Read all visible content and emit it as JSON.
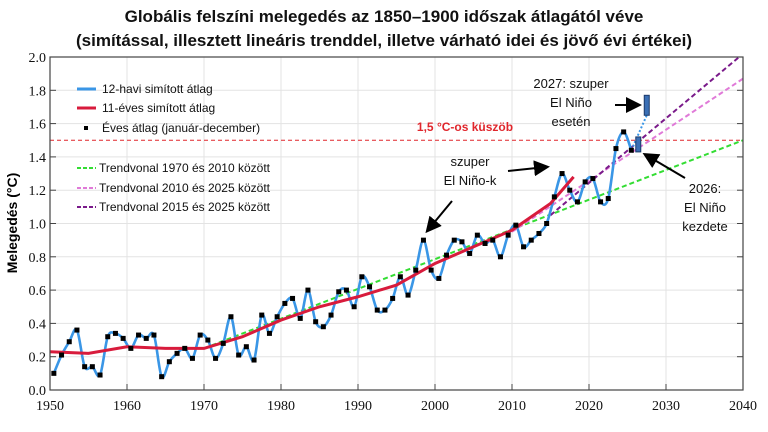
{
  "chart_data": {
    "type": "line",
    "title": "Globális felszíni melegedés az 1850–1900 időszak átlagától véve",
    "subtitle": "(simítással, illesztett lineáris trenddel, illetve várható idei és jövő évi értékei)",
    "xlabel": "",
    "ylabel": "Melegedés (°C)",
    "xlim": [
      1950,
      2040
    ],
    "ylim": [
      0,
      2.0
    ],
    "xticks": [
      "1950",
      "1960",
      "1970",
      "1980",
      "1990",
      "2000",
      "2010",
      "2020",
      "2030",
      "2040"
    ],
    "yticks": [
      "0.0",
      "0.2",
      "0.4",
      "0.6",
      "0.8",
      "1.0",
      "1.2",
      "1.4",
      "1.6",
      "1.8",
      "2.0"
    ],
    "grid": true,
    "legend_position": "top-left",
    "series": [
      {
        "name": "12-havi simított átlag",
        "color": "#3a96e6",
        "style": "solid"
      },
      {
        "name": "11-éves simított átlag",
        "color": "#d81b3c",
        "style": "solid",
        "x": [
          1950,
          1955,
          1960,
          1965,
          1970,
          1975,
          1980,
          1985,
          1990,
          1995,
          2000,
          2005,
          2010,
          2015,
          2018
        ],
        "y": [
          0.23,
          0.22,
          0.26,
          0.25,
          0.25,
          0.32,
          0.42,
          0.5,
          0.56,
          0.63,
          0.76,
          0.86,
          0.96,
          1.12,
          1.28
        ]
      },
      {
        "name": "Éves átlag (január-december)",
        "color": "#000000",
        "style": "markers",
        "x": [
          1950,
          1951,
          1952,
          1953,
          1954,
          1955,
          1956,
          1957,
          1958,
          1959,
          1960,
          1961,
          1962,
          1963,
          1964,
          1965,
          1966,
          1967,
          1968,
          1969,
          1970,
          1971,
          1972,
          1973,
          1974,
          1975,
          1976,
          1977,
          1978,
          1979,
          1980,
          1981,
          1982,
          1983,
          1984,
          1985,
          1986,
          1987,
          1988,
          1989,
          1990,
          1991,
          1992,
          1993,
          1994,
          1995,
          1996,
          1997,
          1998,
          1999,
          2000,
          2001,
          2002,
          2003,
          2004,
          2005,
          2006,
          2007,
          2008,
          2009,
          2010,
          2011,
          2012,
          2013,
          2014,
          2015,
          2016,
          2017,
          2018,
          2019,
          2020,
          2021,
          2022,
          2023,
          2024,
          2025
        ],
        "y": [
          0.1,
          0.21,
          0.29,
          0.36,
          0.14,
          0.14,
          0.09,
          0.32,
          0.34,
          0.31,
          0.25,
          0.33,
          0.31,
          0.33,
          0.08,
          0.17,
          0.22,
          0.25,
          0.19,
          0.33,
          0.3,
          0.19,
          0.28,
          0.44,
          0.21,
          0.26,
          0.18,
          0.45,
          0.34,
          0.44,
          0.52,
          0.55,
          0.43,
          0.6,
          0.41,
          0.38,
          0.45,
          0.59,
          0.6,
          0.5,
          0.68,
          0.62,
          0.48,
          0.48,
          0.55,
          0.68,
          0.57,
          0.72,
          0.9,
          0.72,
          0.67,
          0.81,
          0.9,
          0.89,
          0.82,
          0.93,
          0.88,
          0.9,
          0.8,
          0.93,
          0.99,
          0.86,
          0.9,
          0.94,
          1.0,
          1.16,
          1.3,
          1.2,
          1.13,
          1.25,
          1.27,
          1.13,
          1.15,
          1.45,
          1.55,
          1.44
        ]
      },
      {
        "name": "Trendvonal 1970 és 2010 között",
        "color": "#33dd33",
        "style": "dashed",
        "x": [
          1970,
          2040
        ],
        "y": [
          0.25,
          1.5
        ]
      },
      {
        "name": "Trendvonal 2010 és 2025 között",
        "color": "#e07ad8",
        "style": "dashed",
        "x": [
          2010,
          2040
        ],
        "y": [
          0.95,
          1.87
        ]
      },
      {
        "name": "Trendvonal 2015 és 2025 között",
        "color": "#7a1a8a",
        "style": "dashed",
        "x": [
          2015,
          2039.5
        ],
        "y": [
          1.05,
          2.0
        ]
      }
    ],
    "projections": [
      {
        "x": 2026.4,
        "low": 1.43,
        "high": 1.52
      },
      {
        "x": 2027.5,
        "low": 1.65,
        "high": 1.77
      }
    ],
    "threshold": {
      "value": 1.5,
      "label": "1,5 °C-os küszöb",
      "color": "#e0262c"
    },
    "annotations": [
      {
        "lines": [
          "2027: szuper",
          "El Niño",
          "esetén"
        ]
      },
      {
        "lines": [
          "szuper",
          "El Niño-k"
        ]
      },
      {
        "lines": [
          "2026:",
          "El Niño",
          "kezdete"
        ]
      }
    ]
  }
}
